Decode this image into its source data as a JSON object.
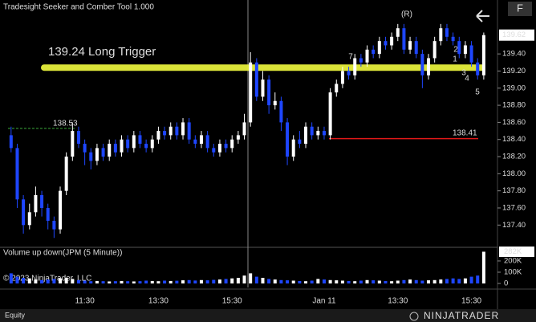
{
  "app": {
    "title": "Tradesight Seeker and Comber Tool 1.000",
    "copyright": "© 2023 NinjaTrader, LLC",
    "account": "Equity",
    "logo": "NINJATRADER",
    "button": "F"
  },
  "chart_data": [
    {
      "type": "candlestick",
      "up_color": "#ffffff",
      "down_color": "#1e46ff",
      "categories": [
        null,
        null,
        null,
        null,
        null,
        null,
        null,
        null,
        null,
        null,
        null,
        null,
        "11:30",
        null,
        null,
        null,
        null,
        null,
        null,
        null,
        null,
        null,
        null,
        null,
        "13:30",
        null,
        null,
        null,
        null,
        null,
        null,
        null,
        null,
        null,
        null,
        null,
        "15:30",
        null,
        null,
        null,
        null,
        null,
        null,
        null,
        null,
        null,
        null,
        null,
        null,
        null,
        null,
        "Jan 11",
        null,
        null,
        null,
        null,
        null,
        null,
        null,
        null,
        null,
        null,
        null,
        "13:30",
        null,
        null,
        null,
        null,
        null,
        null,
        null,
        null,
        null,
        null,
        null,
        "15:30",
        null,
        null
      ],
      "open": [
        138.45,
        138.3,
        137.7,
        137.4,
        137.55,
        137.75,
        137.6,
        137.45,
        137.35,
        137.8,
        138.2,
        138.5,
        138.35,
        138.25,
        138.15,
        138.3,
        138.2,
        138.35,
        138.25,
        138.4,
        138.3,
        138.45,
        138.35,
        138.3,
        138.4,
        138.5,
        138.45,
        138.55,
        138.45,
        138.6,
        138.4,
        138.35,
        138.45,
        138.3,
        138.25,
        138.35,
        138.3,
        138.4,
        138.45,
        138.6,
        139.3,
        138.9,
        139.1,
        138.8,
        138.85,
        138.6,
        138.2,
        138.4,
        138.35,
        138.55,
        138.45,
        138.5,
        138.45,
        138.95,
        139.05,
        139.2,
        139.15,
        139.35,
        139.3,
        139.45,
        139.4,
        139.55,
        139.5,
        139.6,
        139.7,
        139.45,
        139.55,
        139.4,
        139.15,
        139.35,
        139.55,
        139.7,
        139.6,
        139.55,
        139.4,
        139.5,
        139.3,
        139.15
      ],
      "high": [
        138.55,
        138.35,
        137.75,
        137.65,
        137.85,
        137.8,
        137.65,
        137.5,
        137.85,
        138.25,
        138.6,
        138.55,
        138.4,
        138.3,
        138.35,
        138.35,
        138.4,
        138.4,
        138.45,
        138.45,
        138.5,
        138.5,
        138.4,
        138.45,
        138.55,
        138.55,
        138.6,
        138.6,
        138.65,
        138.65,
        138.45,
        138.5,
        138.5,
        138.35,
        138.4,
        138.4,
        138.45,
        138.5,
        138.7,
        139.42,
        139.35,
        139.2,
        139.15,
        138.95,
        138.9,
        138.65,
        138.45,
        138.5,
        138.6,
        138.6,
        138.55,
        138.55,
        139.0,
        139.1,
        139.25,
        139.25,
        139.4,
        139.4,
        139.5,
        139.5,
        139.6,
        139.6,
        139.65,
        139.75,
        139.75,
        139.6,
        139.6,
        139.45,
        139.4,
        139.6,
        139.75,
        139.75,
        139.65,
        139.6,
        139.55,
        139.55,
        139.35,
        139.65
      ],
      "low": [
        138.25,
        137.6,
        137.3,
        137.35,
        137.5,
        137.5,
        137.35,
        137.25,
        137.3,
        137.75,
        138.15,
        138.3,
        138.1,
        138.05,
        138.1,
        138.15,
        138.15,
        138.2,
        138.2,
        138.25,
        138.25,
        138.3,
        138.25,
        138.25,
        138.35,
        138.4,
        138.4,
        138.4,
        138.4,
        138.35,
        138.3,
        138.3,
        138.25,
        138.2,
        138.2,
        138.25,
        138.25,
        138.35,
        138.4,
        138.55,
        138.85,
        138.85,
        138.7,
        138.75,
        138.5,
        138.1,
        138.15,
        138.3,
        138.3,
        138.4,
        138.4,
        138.4,
        138.4,
        138.9,
        139.0,
        139.1,
        139.1,
        139.25,
        139.25,
        139.35,
        139.35,
        139.45,
        139.45,
        139.55,
        139.4,
        139.4,
        139.35,
        139.0,
        139.1,
        139.3,
        139.5,
        139.55,
        139.5,
        139.35,
        139.35,
        139.25,
        139.1,
        139.1
      ],
      "close": [
        138.3,
        137.7,
        137.4,
        137.55,
        137.75,
        137.6,
        137.45,
        137.35,
        137.8,
        138.2,
        138.5,
        138.35,
        138.25,
        138.15,
        138.3,
        138.2,
        138.35,
        138.25,
        138.4,
        138.3,
        138.45,
        138.35,
        138.3,
        138.4,
        138.5,
        138.45,
        138.55,
        138.45,
        138.6,
        138.4,
        138.35,
        138.45,
        138.3,
        138.25,
        138.35,
        138.3,
        138.4,
        138.45,
        138.6,
        139.3,
        138.9,
        139.1,
        138.8,
        138.85,
        138.6,
        138.2,
        138.4,
        138.35,
        138.55,
        138.45,
        138.5,
        138.45,
        138.95,
        139.05,
        139.2,
        139.15,
        139.35,
        139.3,
        139.45,
        139.4,
        139.55,
        139.5,
        139.6,
        139.7,
        139.45,
        139.55,
        139.4,
        139.15,
        139.35,
        139.55,
        139.7,
        139.6,
        139.55,
        139.4,
        139.5,
        139.3,
        139.15,
        139.62
      ],
      "ylim": [
        137.14,
        140.03
      ],
      "yticks": [
        {
          "value": 137.4,
          "label": "137.40"
        },
        {
          "value": 137.6,
          "label": "137.60"
        },
        {
          "value": 137.8,
          "label": "137.80"
        },
        {
          "value": 138.0,
          "label": "138.00"
        },
        {
          "value": 138.2,
          "label": "138.20"
        },
        {
          "value": 138.4,
          "label": "138.40"
        },
        {
          "value": 138.6,
          "label": "138.60"
        },
        {
          "value": 138.8,
          "label": "138.80"
        },
        {
          "value": 139.0,
          "label": "139.00"
        },
        {
          "value": 139.2,
          "label": "139.20"
        },
        {
          "value": 139.4,
          "label": "139.40"
        }
      ],
      "annotations": [
        {
          "text": "139.24 Long Trigger",
          "value": 139.24,
          "color": "#e6f03c"
        },
        {
          "text": "138.41",
          "value": 138.41,
          "color": "#e01818"
        },
        {
          "text": "138.53",
          "value": 138.53,
          "color": "#3aa83a"
        }
      ],
      "markers": [
        {
          "text": "(R)",
          "color": "#d020d0"
        },
        {
          "text": "7",
          "color": "#3aa83a"
        },
        {
          "text": "2",
          "color": "#3aa83a"
        },
        {
          "text": "1",
          "color": "#e020a0"
        },
        {
          "text": "3",
          "color": "#e020a0"
        },
        {
          "text": "4",
          "color": "#e020a0"
        },
        {
          "text": "5",
          "color": "#e020a0"
        }
      ]
    },
    {
      "type": "bar",
      "title": "Volume up down(JPM (5 Minute))",
      "values": [
        90000,
        60000,
        50000,
        45000,
        35000,
        30000,
        35000,
        40000,
        45000,
        50000,
        40000,
        30000,
        25000,
        20000,
        22000,
        20000,
        18000,
        20000,
        22000,
        20000,
        18000,
        20000,
        25000,
        22000,
        20000,
        25000,
        22000,
        24000,
        28000,
        30000,
        26000,
        30000,
        28000,
        32000,
        35000,
        40000,
        45000,
        50000,
        70000,
        90000,
        60000,
        50000,
        40000,
        35000,
        30000,
        28000,
        25000,
        22000,
        20000,
        25000,
        40000,
        35000,
        30000,
        28000,
        25000,
        22000,
        20000,
        25000,
        30000,
        28000,
        25000,
        22000,
        20000,
        25000,
        30000,
        35000,
        30000,
        25000,
        28000,
        30000,
        35000,
        40000,
        45000,
        40000,
        45000,
        60000,
        70000,
        282000
      ],
      "value_labels": [
        null,
        null,
        null,
        null,
        null,
        null,
        null,
        null,
        null,
        null,
        null,
        null,
        null,
        null,
        null,
        null,
        null,
        null,
        null,
        null,
        null,
        null,
        null,
        null,
        null,
        null,
        null,
        null,
        null,
        null,
        null,
        null,
        null,
        null,
        null,
        null,
        null,
        null,
        null,
        null,
        null,
        null,
        null,
        null,
        null,
        null,
        null,
        null,
        null,
        null,
        null,
        null,
        null,
        null,
        null,
        null,
        null,
        null,
        null,
        null,
        null,
        null,
        null,
        null,
        null,
        null,
        null,
        null,
        null,
        null,
        null,
        null,
        null,
        null,
        null,
        null,
        null,
        "282K"
      ],
      "ylim": [
        0,
        321000
      ],
      "yticks": [
        0,
        {
          "value": 100000,
          "label": "100K"
        },
        {
          "value": 200000,
          "label": "200K"
        }
      ]
    }
  ]
}
